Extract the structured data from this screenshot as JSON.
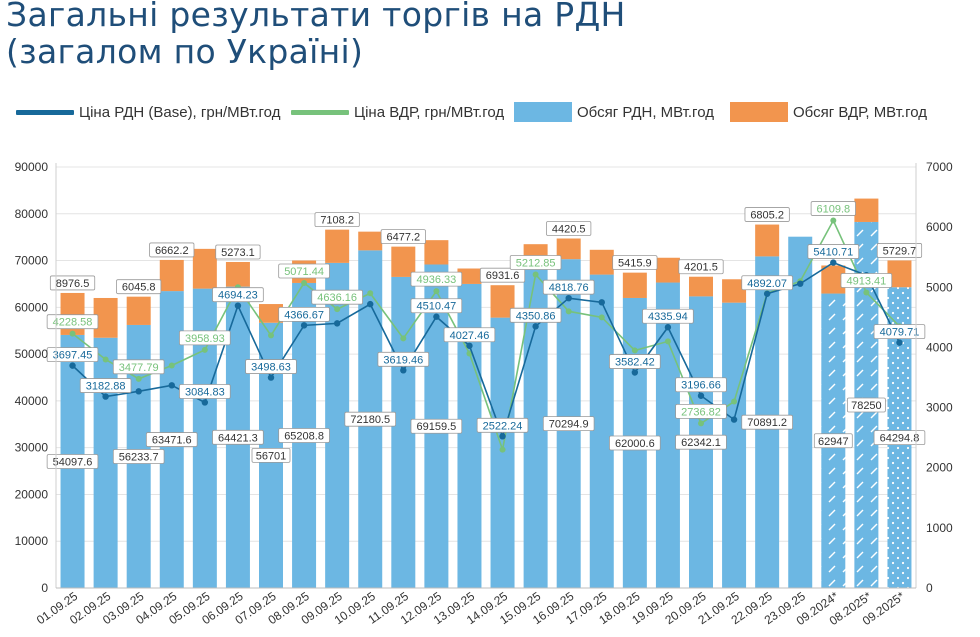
{
  "page": {
    "title_line1": "Загальні результати торгів на РДН",
    "title_line2": "(загалом по Україні)"
  },
  "legend": [
    {
      "label": "Ціна РДН (Base), грн/МВт.год",
      "color": "#17699a",
      "kind": "line"
    },
    {
      "label": "Ціна ВДР, грн/МВт.год",
      "color": "#77c27b",
      "kind": "line"
    },
    {
      "label": "Обсяг РДН, МВт.год",
      "color": "#6cb7e3",
      "kind": "bar"
    },
    {
      "label": "Обсяг ВДР, МВт.год",
      "color": "#f2954e",
      "kind": "bar"
    }
  ],
  "colors": {
    "rdn_volume": "#6cb7e3",
    "vdr_volume": "#f2954e",
    "rdn_price": "#17699a",
    "vdr_price": "#77c27b",
    "label_border": "#9a9a9a",
    "grid": "#e4e4e4",
    "axis_text": "#333333"
  },
  "chart_data": {
    "type": "bar",
    "title": "Загальні результати торгів на РДН (загалом по Україні)",
    "categories": [
      "01.09.25",
      "02.09.25",
      "03.09.25",
      "04.09.25",
      "05.09.25",
      "06.09.25",
      "07.09.25",
      "08.09.25",
      "09.09.25",
      "10.09.25",
      "11.09.25",
      "12.09.25",
      "13.09.25",
      "14.09.25",
      "15.09.25",
      "16.09.25",
      "17.09.25",
      "18.09.25",
      "19.09.25",
      "20.09.25",
      "21.09.25",
      "22.09.25",
      "23.09.25",
      "09.2024*",
      "08.2025*",
      "09.2025*"
    ],
    "hatched_categories": [
      "09.2024*",
      "08.2025*",
      "09.2025*"
    ],
    "y_left": {
      "min": 0,
      "max": 90000,
      "ticks": [
        0,
        10000,
        20000,
        30000,
        40000,
        50000,
        60000,
        70000,
        80000,
        90000
      ]
    },
    "y_right": {
      "min": 0,
      "max": 7000,
      "ticks": [
        0,
        1000,
        2000,
        3000,
        4000,
        5000,
        6000,
        7000
      ]
    },
    "series": [
      {
        "name": "Обсяг РДН, МВт.год",
        "type": "bar",
        "axis": "left",
        "values": [
          54097.6,
          53500,
          56233.7,
          63471.6,
          64000,
          64421.3,
          56701,
          65208.8,
          69500,
          72180.5,
          66500,
          69159.5,
          65000,
          57800,
          69200,
          70294.9,
          67000,
          62000.6,
          65300,
          62342.1,
          61000,
          70891.2,
          75100,
          62947,
          78250,
          64294.8
        ],
        "labels": [
          "54097.6",
          "",
          "56233.7",
          "63471.6",
          "",
          "64421.3",
          "56701",
          "65208.8",
          "",
          "72180.5",
          "",
          "69159.5",
          "",
          "",
          "",
          "70294.9",
          "",
          "62000.6",
          "",
          "62342.1",
          "",
          "70891.2",
          "",
          "62947",
          "78250",
          "64294.8"
        ]
      },
      {
        "name": "Обсяг ВДР, МВт.год",
        "type": "bar",
        "axis": "left",
        "stacked": true,
        "values": [
          8976.5,
          8500,
          6045.8,
          6662.2,
          8500,
          5273.1,
          4000,
          4800,
          7108.2,
          4000,
          6477.2,
          5200,
          3300,
          6931.6,
          4300,
          4420.5,
          5300,
          5415.9,
          5300,
          4201.5,
          5000,
          6805.2,
          0,
          6000,
          5000,
          5729.7
        ],
        "labels": [
          "8976.5",
          "",
          "6045.8",
          "6662.2",
          "",
          "5273.1",
          "",
          "",
          "7108.2",
          "",
          "6477.2",
          "",
          "",
          "6931.6",
          "",
          "4420.5",
          "",
          "5415.9",
          "",
          "4201.5",
          "",
          "6805.2",
          "",
          "",
          "",
          "5729.7"
        ]
      },
      {
        "name": "Ціна РДН (Base), грн/МВт.год",
        "type": "line",
        "axis": "right",
        "values": [
          3697.45,
          3182.88,
          3270,
          3370,
          3084.83,
          4694.23,
          3498.63,
          4366.67,
          4400,
          4720,
          3619.46,
          4510.47,
          4027.46,
          2522.24,
          4350.86,
          4818.76,
          4750,
          3582.42,
          4335.94,
          3196.66,
          2800,
          4892.07,
          5060,
          5410.71,
          5200,
          4079.71
        ],
        "labels": [
          "3697.45",
          "3182.88",
          "",
          "",
          "3084.83",
          "4694.23",
          "3498.63",
          "4366.67",
          "",
          "",
          "3619.46",
          "4510.47",
          "4027.46",
          "2522.24",
          "4350.86",
          "4818.76",
          "",
          "3582.42",
          "4335.94",
          "3196.66",
          "",
          "4892.07",
          "",
          "5410.71",
          "",
          "4079.71"
        ]
      },
      {
        "name": "Ціна ВДР, грн/МВт.год",
        "type": "line",
        "axis": "right",
        "values": [
          4228.58,
          3800,
          3477.79,
          3700,
          3958.93,
          5000,
          4200,
          5071.44,
          4636.16,
          4900,
          4150,
          4936.33,
          3900,
          2300,
          5212.85,
          4600,
          4500,
          3950,
          4100,
          2736.82,
          3100,
          4900,
          5100,
          6109.8,
          4913.41,
          4350
        ],
        "labels": [
          "4228.58",
          "",
          "3477.79",
          "",
          "3958.93",
          "",
          "",
          "5071.44",
          "4636.16",
          "",
          "",
          "4936.33",
          "",
          "",
          "5212.85",
          "",
          "",
          "",
          "",
          "2736.82",
          "",
          "",
          "",
          "6109.8",
          "4913.41",
          ""
        ]
      }
    ]
  }
}
